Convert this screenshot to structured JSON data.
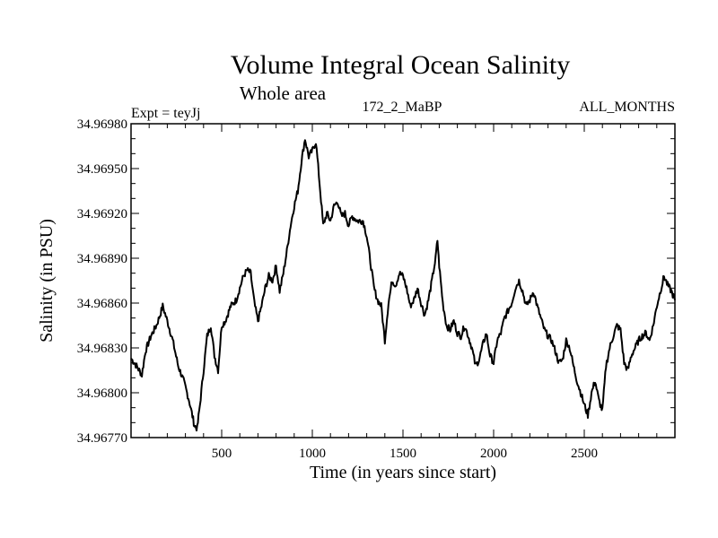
{
  "chart_data": {
    "type": "line",
    "title": "Volume Integral Ocean Salinity",
    "subtitle": "Whole area",
    "header_left": "Expt = teyJj",
    "header_center": "172_2_MaBP",
    "header_right": "ALL_MONTHS",
    "xlabel": "Time (in years since start)",
    "ylabel": "Salinity (in PSU)",
    "xlim": [
      0,
      3000
    ],
    "ylim": [
      34.9677,
      34.9698
    ],
    "xticks": [
      500,
      1000,
      1500,
      2000,
      2500
    ],
    "yticks": [
      34.9677,
      34.968,
      34.9683,
      34.9686,
      34.9689,
      34.9692,
      34.9695,
      34.9698
    ],
    "ytick_labels": [
      "34.96770",
      "34.96800",
      "34.96830",
      "34.96860",
      "34.96890",
      "34.96920",
      "34.96950",
      "34.96980"
    ],
    "series": [
      {
        "name": "salinity",
        "x": [
          0,
          30,
          60,
          80,
          110,
          140,
          160,
          175,
          200,
          230,
          260,
          290,
          320,
          350,
          365,
          380,
          400,
          420,
          440,
          460,
          480,
          500,
          520,
          550,
          580,
          600,
          620,
          640,
          660,
          680,
          700,
          720,
          740,
          760,
          780,
          800,
          820,
          840,
          860,
          880,
          900,
          920,
          940,
          960,
          980,
          1000,
          1020,
          1040,
          1060,
          1080,
          1100,
          1120,
          1140,
          1160,
          1180,
          1200,
          1220,
          1250,
          1280,
          1300,
          1320,
          1340,
          1360,
          1380,
          1400,
          1420,
          1440,
          1460,
          1480,
          1500,
          1520,
          1540,
          1560,
          1580,
          1600,
          1620,
          1640,
          1660,
          1680,
          1690,
          1700,
          1720,
          1740,
          1760,
          1780,
          1800,
          1820,
          1840,
          1860,
          1880,
          1900,
          1920,
          1940,
          1960,
          1980,
          2000,
          2020,
          2040,
          2060,
          2080,
          2100,
          2120,
          2140,
          2160,
          2180,
          2200,
          2220,
          2240,
          2260,
          2280,
          2300,
          2320,
          2340,
          2360,
          2380,
          2400,
          2420,
          2440,
          2460,
          2480,
          2500,
          2520,
          2540,
          2560,
          2580,
          2600,
          2620,
          2640,
          2660,
          2680,
          2700,
          2720,
          2740,
          2760,
          2780,
          2800,
          2820,
          2840,
          2860,
          2880,
          2900,
          2920,
          2940,
          2960,
          2980,
          3000
        ],
        "values": [
          34.96823,
          34.96818,
          34.96812,
          34.96828,
          34.96838,
          34.96845,
          34.96852,
          34.96858,
          34.96848,
          34.96835,
          34.96818,
          34.96808,
          34.96795,
          34.96778,
          34.96776,
          34.96792,
          34.96815,
          34.96838,
          34.96845,
          34.96825,
          34.96815,
          34.96845,
          34.96848,
          34.96858,
          34.96862,
          34.9687,
          34.96878,
          34.96882,
          34.9688,
          34.9686,
          34.96848,
          34.96858,
          34.9687,
          34.96878,
          34.96875,
          34.96885,
          34.96868,
          34.9688,
          34.96895,
          34.96912,
          34.96925,
          34.96935,
          34.96955,
          34.9697,
          34.96958,
          34.96962,
          34.96968,
          34.9694,
          34.96912,
          34.9692,
          34.96915,
          34.96925,
          34.96928,
          34.96918,
          34.9692,
          34.96912,
          34.96918,
          34.96915,
          34.96915,
          34.96905,
          34.96888,
          34.9687,
          34.96862,
          34.96858,
          34.96835,
          34.9686,
          34.96875,
          34.96872,
          34.9688,
          34.96878,
          34.9687,
          34.96858,
          34.96862,
          34.9687,
          34.9686,
          34.96852,
          34.96862,
          34.96875,
          34.9689,
          34.96902,
          34.96885,
          34.9686,
          34.96845,
          34.96842,
          34.96848,
          34.9684,
          34.96838,
          34.96845,
          34.96838,
          34.9683,
          34.96818,
          34.96822,
          34.96832,
          34.9684,
          34.96825,
          34.9682,
          34.96835,
          34.9684,
          34.9685,
          34.96855,
          34.9686,
          34.9687,
          34.96875,
          34.96868,
          34.96858,
          34.96862,
          34.96868,
          34.96858,
          34.9685,
          34.96842,
          34.96838,
          34.96835,
          34.96828,
          34.9682,
          34.96822,
          34.96835,
          34.9683,
          34.96818,
          34.96808,
          34.968,
          34.96792,
          34.96785,
          34.968,
          34.96808,
          34.96795,
          34.96788,
          34.96818,
          34.9683,
          34.96838,
          34.96845,
          34.96842,
          34.9682,
          34.96815,
          34.96825,
          34.9683,
          34.96835,
          34.96838,
          34.9684,
          34.96835,
          34.96845,
          34.96858,
          34.96868,
          34.96878,
          34.96872,
          34.96868,
          34.96862
        ]
      }
    ]
  }
}
